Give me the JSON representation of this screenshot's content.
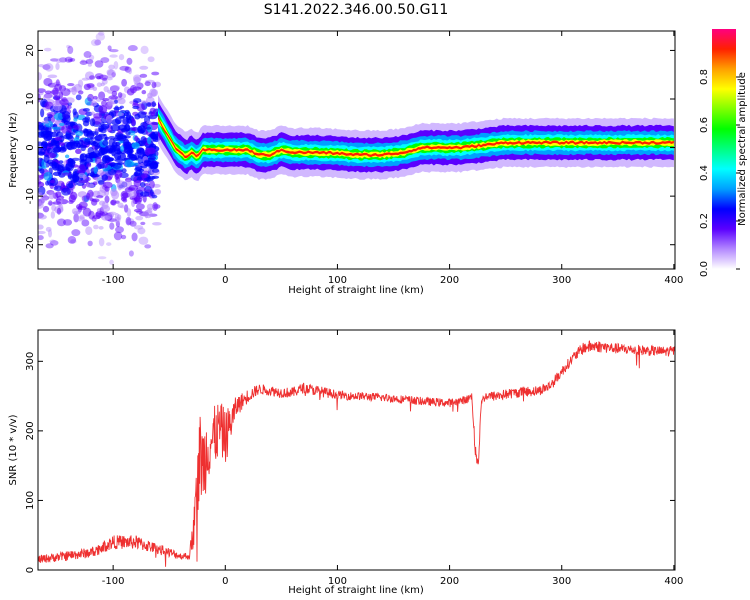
{
  "figure": {
    "title": "S141.2022.346.00.50.G11"
  },
  "chart_data": [
    {
      "type": "heatmap",
      "xlabel": "Height of straight line (km)",
      "ylabel": "Frequency (Hz)",
      "xlim": [
        -167,
        401
      ],
      "ylim": [
        -25,
        24
      ],
      "x_ticks": [
        -100,
        0,
        100,
        200,
        300,
        400
      ],
      "y_ticks": [
        -20,
        -10,
        0,
        10,
        20
      ],
      "grid": false,
      "colorbar": {
        "label": "Normalized spectral amplitude",
        "range": [
          0,
          1
        ],
        "ticks": [
          "0.0",
          "0.2",
          "0.4",
          "0.6",
          "0.8"
        ],
        "colors": [
          "#ffffff",
          "#b388ff",
          "#5a00ff",
          "#0000ff",
          "#00a0ff",
          "#00ffff",
          "#00ff80",
          "#00ff00",
          "#80ff00",
          "#ffff00",
          "#ffa000",
          "#ff2000",
          "#ff0080"
        ]
      },
      "ridge": {
        "x": [
          -60,
          -55,
          -50,
          -45,
          -40,
          -35,
          -30,
          -25,
          -20,
          0,
          20,
          30,
          40,
          50,
          60,
          80,
          100,
          120,
          140,
          160,
          175,
          190,
          210,
          230,
          250,
          300,
          350,
          400
        ],
        "y": [
          6,
          4,
          2,
          0,
          -1,
          -2,
          -1,
          -2,
          -0.5,
          -0.5,
          -0.5,
          -1.5,
          -1.5,
          -0.5,
          -1,
          -1,
          -1.2,
          -1.5,
          -1.5,
          -1,
          0,
          0,
          0,
          0.5,
          1,
          1,
          1,
          1
        ]
      },
      "noise_region": {
        "x_range": [
          -167,
          -60
        ],
        "y_range": [
          -25,
          24
        ]
      }
    },
    {
      "type": "line",
      "xlabel": "Height of straight line (km)",
      "ylabel": "SNR (10 * v/v)",
      "xlim": [
        -167,
        401
      ],
      "ylim": [
        0,
        345
      ],
      "x_ticks": [
        -100,
        0,
        100,
        200,
        300,
        400
      ],
      "y_ticks": [
        0,
        100,
        200,
        300
      ],
      "grid": false,
      "series": [
        {
          "color": "#ee3030",
          "x": [
            -167,
            -120,
            -100,
            -80,
            -60,
            -50,
            -40,
            -32,
            -28,
            -25,
            -22,
            -20,
            -15,
            -10,
            -5,
            0,
            10,
            20,
            30,
            40,
            50,
            60,
            70,
            80,
            90,
            100,
            110,
            120,
            140,
            160,
            180,
            200,
            215,
            220,
            223,
            226,
            228,
            232,
            240,
            260,
            280,
            290,
            300,
            310,
            320,
            330,
            350,
            370,
            390,
            401
          ],
          "y": [
            15,
            25,
            40,
            40,
            30,
            25,
            20,
            20,
            60,
            120,
            170,
            150,
            180,
            190,
            205,
            190,
            235,
            250,
            260,
            258,
            255,
            255,
            262,
            258,
            255,
            252,
            250,
            250,
            248,
            245,
            242,
            240,
            245,
            250,
            165,
            160,
            240,
            250,
            250,
            255,
            258,
            265,
            285,
            305,
            320,
            322,
            318,
            316,
            314,
            315
          ],
          "noise_amplitude": [
            12,
            15,
            20,
            20,
            15,
            15,
            10,
            10,
            60,
            100,
            140,
            120,
            100,
            90,
            80,
            80,
            30,
            20,
            15,
            15,
            15,
            15,
            15,
            15,
            15,
            12,
            12,
            12,
            12,
            12,
            12,
            12,
            12,
            12,
            25,
            25,
            12,
            12,
            15,
            15,
            15,
            15,
            15,
            15,
            18,
            18,
            15,
            15,
            15,
            15
          ]
        }
      ]
    }
  ]
}
